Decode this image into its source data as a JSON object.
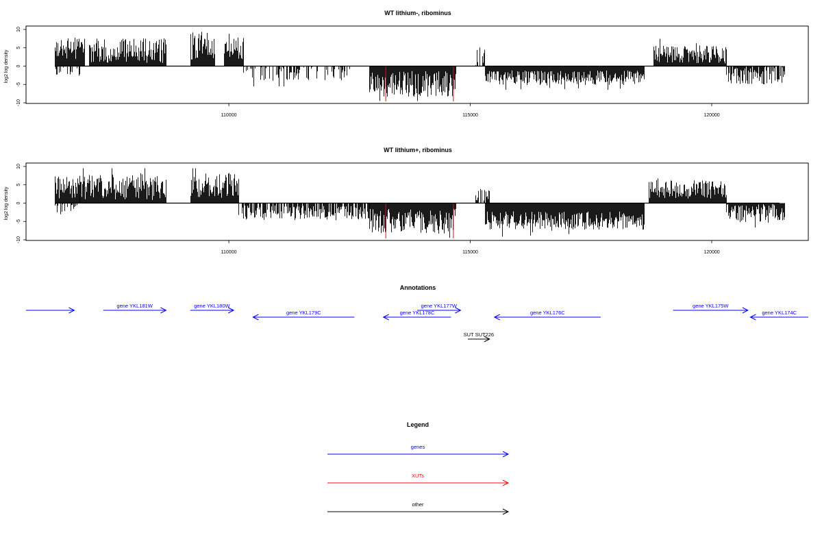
{
  "chart_data": [
    {
      "type": "bar",
      "title": "WT lithium-, ribominus",
      "ylabel": "log2 log density",
      "xlim": [
        105800,
        122000
      ],
      "ylim": [
        -10,
        10
      ],
      "xticks": [
        110000,
        115000,
        120000
      ],
      "xtick_labels": [
        "110000",
        "115000",
        "120000"
      ],
      "yticks": [
        -10,
        -5,
        0,
        5,
        10
      ],
      "ytick_labels": [
        "-10",
        "-5",
        "0",
        "5",
        "10"
      ],
      "segments": [
        {
          "from": 106400,
          "to": 107000,
          "sign": 1,
          "mean": 4.5,
          "amp": 3.0,
          "density": 1.0,
          "seed": 3
        },
        {
          "from": 106400,
          "to": 106900,
          "sign": -1,
          "mean": 1.0,
          "amp": 1.5,
          "density": 0.3,
          "seed": 9
        },
        {
          "from": 107100,
          "to": 108700,
          "sign": 1,
          "mean": 3.8,
          "amp": 3.5,
          "density": 1.0,
          "seed": 5
        },
        {
          "from": 109200,
          "to": 109700,
          "sign": 1,
          "mean": 5.0,
          "amp": 4.0,
          "density": 1.0,
          "seed": 7
        },
        {
          "from": 109900,
          "to": 110300,
          "sign": 1,
          "mean": 4.5,
          "amp": 3.0,
          "density": 1.0,
          "seed": 11
        },
        {
          "from": 110300,
          "to": 112500,
          "sign": -1,
          "mean": 1.8,
          "amp": 2.0,
          "density": 0.45,
          "seed": 13
        },
        {
          "from": 112900,
          "to": 114700,
          "sign": -1,
          "mean": 4.5,
          "amp": 3.5,
          "density": 1.0,
          "seed": 17
        },
        {
          "from": 115100,
          "to": 115300,
          "sign": 1,
          "mean": 2.5,
          "amp": 2.5,
          "density": 0.25,
          "seed": 19
        },
        {
          "from": 115300,
          "to": 118600,
          "sign": -1,
          "mean": 3.0,
          "amp": 2.0,
          "density": 1.0,
          "seed": 23
        },
        {
          "from": 118800,
          "to": 120300,
          "sign": 1,
          "mean": 3.0,
          "amp": 2.5,
          "density": 1.0,
          "seed": 29
        },
        {
          "from": 120300,
          "to": 121500,
          "sign": -1,
          "mean": 2.2,
          "amp": 2.5,
          "density": 0.9,
          "seed": 31
        }
      ],
      "red_markers": [
        113250,
        114650
      ]
    },
    {
      "type": "bar",
      "title": "WT lithium+, ribominus",
      "ylabel": "log2 log density",
      "xlim": [
        105800,
        122000
      ],
      "ylim": [
        -10,
        10
      ],
      "xticks": [
        110000,
        115000,
        120000
      ],
      "xtick_labels": [
        "110000",
        "115000",
        "120000"
      ],
      "yticks": [
        -10,
        -5,
        0,
        5,
        10
      ],
      "ytick_labels": [
        "-10",
        "-5",
        "0",
        "5",
        "10"
      ],
      "segments": [
        {
          "from": 106400,
          "to": 106900,
          "sign": 1,
          "mean": 4.0,
          "amp": 3.0,
          "density": 1.0,
          "seed": 41
        },
        {
          "from": 106400,
          "to": 106900,
          "sign": -1,
          "mean": 1.5,
          "amp": 1.5,
          "density": 0.35,
          "seed": 43
        },
        {
          "from": 106900,
          "to": 108700,
          "sign": 1,
          "mean": 4.0,
          "amp": 3.5,
          "density": 1.0,
          "seed": 47
        },
        {
          "from": 109200,
          "to": 110200,
          "sign": 1,
          "mean": 4.5,
          "amp": 3.5,
          "density": 1.0,
          "seed": 53
        },
        {
          "from": 110200,
          "to": 112900,
          "sign": -1,
          "mean": 2.5,
          "amp": 2.0,
          "density": 0.7,
          "seed": 59
        },
        {
          "from": 112900,
          "to": 114700,
          "sign": -1,
          "mean": 4.5,
          "amp": 3.5,
          "density": 1.0,
          "seed": 61
        },
        {
          "from": 115100,
          "to": 115400,
          "sign": 1,
          "mean": 2.5,
          "amp": 2.0,
          "density": 0.6,
          "seed": 67
        },
        {
          "from": 115300,
          "to": 118600,
          "sign": -1,
          "mean": 4.5,
          "amp": 2.5,
          "density": 1.0,
          "seed": 71
        },
        {
          "from": 118700,
          "to": 120300,
          "sign": 1,
          "mean": 3.5,
          "amp": 2.5,
          "density": 1.0,
          "seed": 73
        },
        {
          "from": 120300,
          "to": 121500,
          "sign": -1,
          "mean": 2.5,
          "amp": 2.5,
          "density": 1.0,
          "seed": 79
        }
      ],
      "red_markers": [
        113250,
        114650
      ]
    }
  ],
  "annotations": {
    "title": "Annotations",
    "features": [
      {
        "label": "",
        "start": 105800,
        "end": 106800,
        "strand": "+",
        "type": "gene"
      },
      {
        "label": "gene YKL181W",
        "start": 107400,
        "end": 108700,
        "strand": "+",
        "type": "gene"
      },
      {
        "label": "gene YKL180W",
        "start": 109200,
        "end": 110100,
        "strand": "+",
        "type": "gene"
      },
      {
        "label": "gene YKL179C",
        "start": 110500,
        "end": 112600,
        "strand": "-",
        "type": "gene"
      },
      {
        "label": "gene YKL177W",
        "start": 113900,
        "end": 114800,
        "strand": "+",
        "type": "gene"
      },
      {
        "label": "gene YKL178C",
        "start": 113200,
        "end": 114600,
        "strand": "-",
        "type": "gene"
      },
      {
        "label": "gene YKL176C",
        "start": 115500,
        "end": 117700,
        "strand": "-",
        "type": "gene"
      },
      {
        "label": "gene YKL175W",
        "start": 119200,
        "end": 120750,
        "strand": "+",
        "type": "gene"
      },
      {
        "label": "gene YKL174C",
        "start": 120800,
        "end": 122000,
        "strand": "-",
        "type": "gene"
      },
      {
        "label": "SUT SUT226",
        "start": 114950,
        "end": 115400,
        "strand": "+",
        "type": "other"
      }
    ]
  },
  "legend": {
    "title": "Legend",
    "items": [
      {
        "label": "genes",
        "color": "#0000ff"
      },
      {
        "label": "XUTs",
        "color": "#ff0000"
      },
      {
        "label": "other",
        "color": "#000000"
      }
    ]
  },
  "colors": {
    "gene": "#0000ff",
    "xut": "#ff0000",
    "other": "#000000",
    "marker": "#ff0000"
  }
}
